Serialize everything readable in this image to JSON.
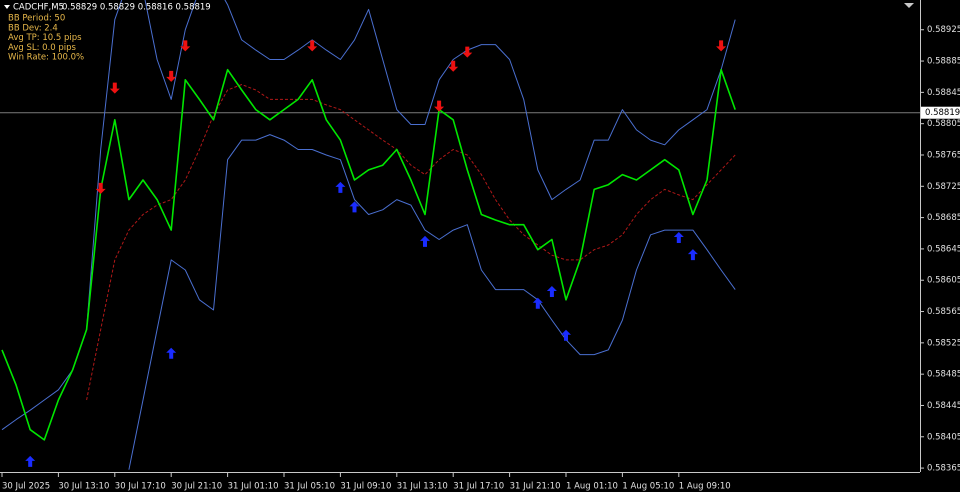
{
  "chart_data": {
    "type": "line",
    "symbol": "CADCHF,M5",
    "quote": "0.58829 0.58829 0.58816 0.58819",
    "annotations": [
      "BB Period: 50",
      "BB Dev: 2.4",
      "Avg TP: 10.5 pips",
      "Avg SL: 0.0 pips",
      "Win Rate: 100.0%"
    ],
    "current_price": 0.58819,
    "categories": [
      "30 Jul 2025",
      null,
      null,
      null,
      "30 Jul 13:10",
      null,
      null,
      null,
      "30 Jul 17:10",
      null,
      null,
      null,
      "30 Jul 21:10",
      null,
      null,
      null,
      "31 Jul 01:10",
      null,
      null,
      null,
      "31 Jul 05:10",
      null,
      null,
      null,
      "31 Jul 09:10",
      null,
      null,
      null,
      "31 Jul 13:10",
      null,
      null,
      null,
      "31 Jul 17:10",
      null,
      null,
      null,
      "31 Jul 21:10",
      null,
      null,
      null,
      "1 Aug 01:10",
      null,
      null,
      null,
      "1 Aug 05:10",
      null,
      null,
      null,
      "1 Aug 09:10",
      null,
      null,
      null,
      null
    ],
    "series": [
      {
        "color": "#4a6fd0",
        "style": "line",
        "values": [
          0.58414,
          0.58427,
          0.58439,
          0.58452,
          0.58465,
          0.5849,
          0.58542,
          0.58772,
          0.58938,
          0.58989,
          0.58976,
          0.58887,
          0.58836,
          0.58925,
          0.58976,
          0.58989,
          0.58957,
          0.58912,
          0.58899,
          0.58887,
          0.58887,
          0.58899,
          0.58912,
          0.58899,
          0.58887,
          0.58912,
          0.58951,
          0.58887,
          0.58823,
          0.58804,
          0.58804,
          0.58861,
          0.58887,
          0.58899,
          0.58906,
          0.58906,
          0.58887,
          0.58836,
          0.58746,
          0.58708,
          0.58721,
          0.58733,
          0.58784,
          0.58784,
          0.58823,
          0.58797,
          0.58784,
          0.58778,
          0.58797,
          0.5881,
          0.58823,
          0.58874,
          0.58938
        ]
      },
      {
        "color": "#4a6fd0",
        "style": "line",
        "values": [
          null,
          null,
          null,
          null,
          null,
          null,
          null,
          null,
          null,
          0.58363,
          0.58452,
          0.58542,
          0.58631,
          0.58618,
          0.5858,
          0.58567,
          0.58759,
          0.58784,
          0.58784,
          0.58791,
          0.58784,
          0.58772,
          0.58772,
          0.58765,
          0.58759,
          0.58708,
          0.58689,
          0.58695,
          0.58708,
          0.58701,
          0.58669,
          0.58657,
          0.58669,
          0.58676,
          0.58618,
          0.58593,
          0.58593,
          0.58593,
          0.5858,
          0.58554,
          0.58529,
          0.5851,
          0.5851,
          0.58516,
          0.58554,
          0.58618,
          0.58663,
          0.58669,
          0.58669,
          0.58669,
          0.58644,
          0.58618,
          0.58593
        ]
      },
      {
        "color": "#b01818",
        "style": "dashed",
        "values": [
          null,
          null,
          null,
          null,
          null,
          null,
          0.58452,
          0.58542,
          0.58631,
          0.58669,
          0.58689,
          0.58701,
          0.58708,
          0.58733,
          0.58772,
          0.58816,
          0.58848,
          0.58855,
          0.58848,
          0.58836,
          0.58836,
          0.58836,
          0.58836,
          0.58829,
          0.58823,
          0.5881,
          0.58797,
          0.58784,
          0.58772,
          0.58752,
          0.5874,
          0.58759,
          0.58772,
          0.58765,
          0.5874,
          0.58708,
          0.58682,
          0.58663,
          0.5865,
          0.58637,
          0.58631,
          0.58631,
          0.58644,
          0.5865,
          0.58663,
          0.58689,
          0.58708,
          0.58721,
          0.58714,
          0.58708,
          0.58727,
          0.58746,
          0.58765
        ]
      },
      {
        "color": "#00e600",
        "style": "line",
        "values": [
          0.58516,
          0.58471,
          0.58414,
          0.58401,
          0.58452,
          0.5849,
          0.58542,
          0.58721,
          0.5881,
          0.58708,
          0.58733,
          0.58708,
          0.58669,
          0.58861,
          0.58836,
          0.5881,
          0.58874,
          0.58848,
          0.58823,
          0.5881,
          0.58823,
          0.58836,
          0.58861,
          0.5881,
          0.58784,
          0.58733,
          0.58746,
          0.58752,
          0.58772,
          0.58733,
          0.58689,
          0.58823,
          0.5881,
          0.58746,
          0.58689,
          0.58682,
          0.58676,
          0.58676,
          0.58644,
          0.58657,
          0.5858,
          0.58631,
          0.58721,
          0.58727,
          0.5874,
          0.58733,
          0.58746,
          0.58759,
          0.58746,
          0.58689,
          0.58733,
          0.58874,
          0.58823
        ]
      },
      {
        "color": "#ee1111",
        "style": "arrow-down",
        "values": [
          null,
          null,
          null,
          null,
          null,
          null,
          null,
          0.58723,
          0.58851,
          null,
          null,
          null,
          0.58866,
          0.58905,
          null,
          null,
          null,
          null,
          null,
          null,
          null,
          null,
          0.58905,
          null,
          null,
          null,
          null,
          null,
          null,
          null,
          null,
          0.58828,
          0.58879,
          0.58897,
          null,
          null,
          null,
          null,
          null,
          null,
          null,
          null,
          null,
          null,
          null,
          null,
          null,
          null,
          null,
          null,
          null,
          0.58905,
          null
        ]
      },
      {
        "color": "#1a2cff",
        "style": "arrow-up",
        "values": [
          null,
          null,
          0.58373,
          null,
          null,
          null,
          null,
          null,
          null,
          null,
          null,
          null,
          0.58511,
          null,
          null,
          null,
          null,
          null,
          null,
          null,
          null,
          null,
          null,
          null,
          0.58723,
          0.58698,
          null,
          null,
          null,
          null,
          0.58654,
          null,
          null,
          null,
          null,
          null,
          null,
          null,
          0.58575,
          0.5859,
          0.58534,
          null,
          null,
          null,
          null,
          null,
          null,
          null,
          0.58659,
          0.58637,
          null,
          null,
          null
        ]
      }
    ],
    "ylim": [
      0.5836,
      0.58963
    ],
    "yticks": [
      0.58365,
      0.58405,
      0.58445,
      0.58485,
      0.58525,
      0.58565,
      0.58605,
      0.58645,
      0.58685,
      0.58725,
      0.58765,
      0.58805,
      0.58845,
      0.58885,
      0.58925
    ]
  }
}
